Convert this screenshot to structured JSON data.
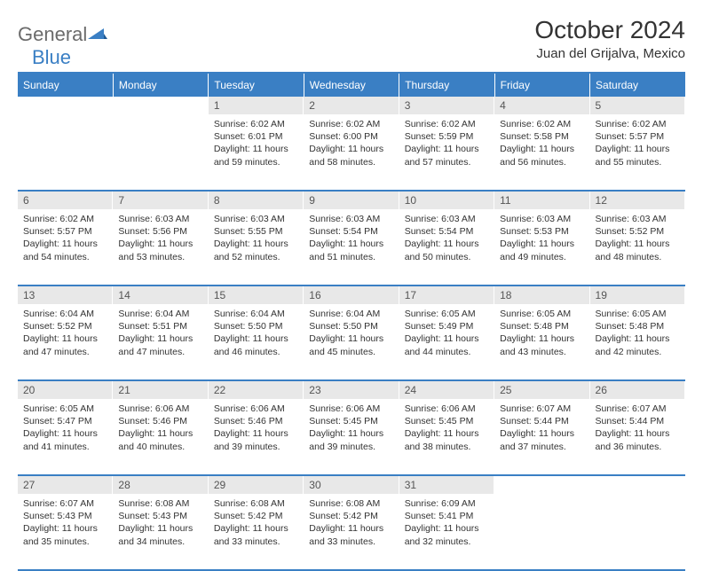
{
  "logo": {
    "general": "General",
    "blue": "Blue"
  },
  "title": "October 2024",
  "location": "Juan del Grijalva, Mexico",
  "colors": {
    "accent": "#3a7fc4",
    "header_text": "#ffffff",
    "daynum_bg": "#e8e8e8",
    "body_text": "#333333"
  },
  "daysOfWeek": [
    "Sunday",
    "Monday",
    "Tuesday",
    "Wednesday",
    "Thursday",
    "Friday",
    "Saturday"
  ],
  "weeks": [
    [
      {
        "n": "",
        "sunrise": "",
        "sunset": "",
        "daylight": ""
      },
      {
        "n": "",
        "sunrise": "",
        "sunset": "",
        "daylight": ""
      },
      {
        "n": "1",
        "sunrise": "Sunrise: 6:02 AM",
        "sunset": "Sunset: 6:01 PM",
        "daylight": "Daylight: 11 hours and 59 minutes."
      },
      {
        "n": "2",
        "sunrise": "Sunrise: 6:02 AM",
        "sunset": "Sunset: 6:00 PM",
        "daylight": "Daylight: 11 hours and 58 minutes."
      },
      {
        "n": "3",
        "sunrise": "Sunrise: 6:02 AM",
        "sunset": "Sunset: 5:59 PM",
        "daylight": "Daylight: 11 hours and 57 minutes."
      },
      {
        "n": "4",
        "sunrise": "Sunrise: 6:02 AM",
        "sunset": "Sunset: 5:58 PM",
        "daylight": "Daylight: 11 hours and 56 minutes."
      },
      {
        "n": "5",
        "sunrise": "Sunrise: 6:02 AM",
        "sunset": "Sunset: 5:57 PM",
        "daylight": "Daylight: 11 hours and 55 minutes."
      }
    ],
    [
      {
        "n": "6",
        "sunrise": "Sunrise: 6:02 AM",
        "sunset": "Sunset: 5:57 PM",
        "daylight": "Daylight: 11 hours and 54 minutes."
      },
      {
        "n": "7",
        "sunrise": "Sunrise: 6:03 AM",
        "sunset": "Sunset: 5:56 PM",
        "daylight": "Daylight: 11 hours and 53 minutes."
      },
      {
        "n": "8",
        "sunrise": "Sunrise: 6:03 AM",
        "sunset": "Sunset: 5:55 PM",
        "daylight": "Daylight: 11 hours and 52 minutes."
      },
      {
        "n": "9",
        "sunrise": "Sunrise: 6:03 AM",
        "sunset": "Sunset: 5:54 PM",
        "daylight": "Daylight: 11 hours and 51 minutes."
      },
      {
        "n": "10",
        "sunrise": "Sunrise: 6:03 AM",
        "sunset": "Sunset: 5:54 PM",
        "daylight": "Daylight: 11 hours and 50 minutes."
      },
      {
        "n": "11",
        "sunrise": "Sunrise: 6:03 AM",
        "sunset": "Sunset: 5:53 PM",
        "daylight": "Daylight: 11 hours and 49 minutes."
      },
      {
        "n": "12",
        "sunrise": "Sunrise: 6:03 AM",
        "sunset": "Sunset: 5:52 PM",
        "daylight": "Daylight: 11 hours and 48 minutes."
      }
    ],
    [
      {
        "n": "13",
        "sunrise": "Sunrise: 6:04 AM",
        "sunset": "Sunset: 5:52 PM",
        "daylight": "Daylight: 11 hours and 47 minutes."
      },
      {
        "n": "14",
        "sunrise": "Sunrise: 6:04 AM",
        "sunset": "Sunset: 5:51 PM",
        "daylight": "Daylight: 11 hours and 47 minutes."
      },
      {
        "n": "15",
        "sunrise": "Sunrise: 6:04 AM",
        "sunset": "Sunset: 5:50 PM",
        "daylight": "Daylight: 11 hours and 46 minutes."
      },
      {
        "n": "16",
        "sunrise": "Sunrise: 6:04 AM",
        "sunset": "Sunset: 5:50 PM",
        "daylight": "Daylight: 11 hours and 45 minutes."
      },
      {
        "n": "17",
        "sunrise": "Sunrise: 6:05 AM",
        "sunset": "Sunset: 5:49 PM",
        "daylight": "Daylight: 11 hours and 44 minutes."
      },
      {
        "n": "18",
        "sunrise": "Sunrise: 6:05 AM",
        "sunset": "Sunset: 5:48 PM",
        "daylight": "Daylight: 11 hours and 43 minutes."
      },
      {
        "n": "19",
        "sunrise": "Sunrise: 6:05 AM",
        "sunset": "Sunset: 5:48 PM",
        "daylight": "Daylight: 11 hours and 42 minutes."
      }
    ],
    [
      {
        "n": "20",
        "sunrise": "Sunrise: 6:05 AM",
        "sunset": "Sunset: 5:47 PM",
        "daylight": "Daylight: 11 hours and 41 minutes."
      },
      {
        "n": "21",
        "sunrise": "Sunrise: 6:06 AM",
        "sunset": "Sunset: 5:46 PM",
        "daylight": "Daylight: 11 hours and 40 minutes."
      },
      {
        "n": "22",
        "sunrise": "Sunrise: 6:06 AM",
        "sunset": "Sunset: 5:46 PM",
        "daylight": "Daylight: 11 hours and 39 minutes."
      },
      {
        "n": "23",
        "sunrise": "Sunrise: 6:06 AM",
        "sunset": "Sunset: 5:45 PM",
        "daylight": "Daylight: 11 hours and 39 minutes."
      },
      {
        "n": "24",
        "sunrise": "Sunrise: 6:06 AM",
        "sunset": "Sunset: 5:45 PM",
        "daylight": "Daylight: 11 hours and 38 minutes."
      },
      {
        "n": "25",
        "sunrise": "Sunrise: 6:07 AM",
        "sunset": "Sunset: 5:44 PM",
        "daylight": "Daylight: 11 hours and 37 minutes."
      },
      {
        "n": "26",
        "sunrise": "Sunrise: 6:07 AM",
        "sunset": "Sunset: 5:44 PM",
        "daylight": "Daylight: 11 hours and 36 minutes."
      }
    ],
    [
      {
        "n": "27",
        "sunrise": "Sunrise: 6:07 AM",
        "sunset": "Sunset: 5:43 PM",
        "daylight": "Daylight: 11 hours and 35 minutes."
      },
      {
        "n": "28",
        "sunrise": "Sunrise: 6:08 AM",
        "sunset": "Sunset: 5:43 PM",
        "daylight": "Daylight: 11 hours and 34 minutes."
      },
      {
        "n": "29",
        "sunrise": "Sunrise: 6:08 AM",
        "sunset": "Sunset: 5:42 PM",
        "daylight": "Daylight: 11 hours and 33 minutes."
      },
      {
        "n": "30",
        "sunrise": "Sunrise: 6:08 AM",
        "sunset": "Sunset: 5:42 PM",
        "daylight": "Daylight: 11 hours and 33 minutes."
      },
      {
        "n": "31",
        "sunrise": "Sunrise: 6:09 AM",
        "sunset": "Sunset: 5:41 PM",
        "daylight": "Daylight: 11 hours and 32 minutes."
      },
      {
        "n": "",
        "sunrise": "",
        "sunset": "",
        "daylight": ""
      },
      {
        "n": "",
        "sunrise": "",
        "sunset": "",
        "daylight": ""
      }
    ]
  ]
}
